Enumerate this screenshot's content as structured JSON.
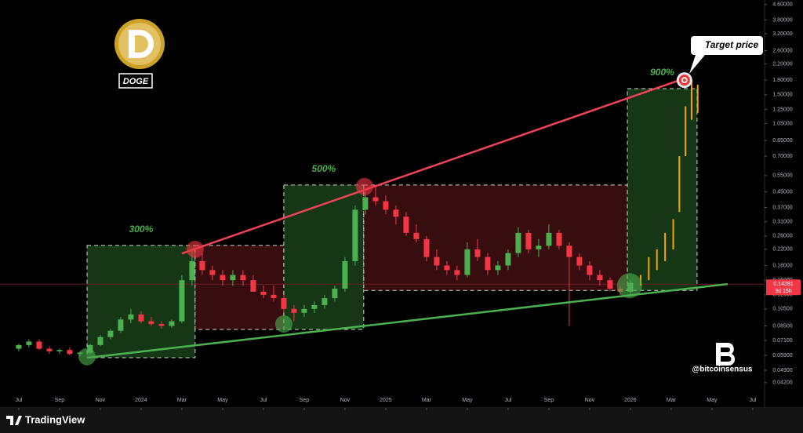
{
  "chart_data": {
    "type": "candlestick",
    "ylog": true,
    "xlim": [
      -0.92,
      36.58
    ],
    "ylim": [
      0.0373,
      4.87
    ],
    "xticks": [
      {
        "value": 0,
        "label": "Jul"
      },
      {
        "value": 2,
        "label": "Sep"
      },
      {
        "value": 4,
        "label": "Nov"
      },
      {
        "value": 6,
        "label": "2024"
      },
      {
        "value": 8,
        "label": "Mar"
      },
      {
        "value": 10,
        "label": "May"
      },
      {
        "value": 12,
        "label": "Jul"
      },
      {
        "value": 14,
        "label": "Sep"
      },
      {
        "value": 16,
        "label": "Nov"
      },
      {
        "value": 18,
        "label": "2025"
      },
      {
        "value": 20,
        "label": "Mar"
      },
      {
        "value": 22,
        "label": "May"
      },
      {
        "value": 24,
        "label": "Jul"
      },
      {
        "value": 26,
        "label": "Sep"
      },
      {
        "value": 28,
        "label": "Nov"
      },
      {
        "value": 30,
        "label": "2026"
      },
      {
        "value": 32,
        "label": "Mar"
      },
      {
        "value": 34,
        "label": "May"
      },
      {
        "value": 36,
        "label": "Jul"
      }
    ],
    "yticks": [
      {
        "value": 4.6,
        "label": "4.60000"
      },
      {
        "value": 3.8,
        "label": "3.80000"
      },
      {
        "value": 3.2,
        "label": "3.20000"
      },
      {
        "value": 2.6,
        "label": "2.60000"
      },
      {
        "value": 2.2,
        "label": "2.20000"
      },
      {
        "value": 1.8,
        "label": "1.80000"
      },
      {
        "value": 1.5,
        "label": "1.50000"
      },
      {
        "value": 1.25,
        "label": "1.25000"
      },
      {
        "value": 1.05,
        "label": "1.05000"
      },
      {
        "value": 0.85,
        "label": "0.85000"
      },
      {
        "value": 0.7,
        "label": "0.70000"
      },
      {
        "value": 0.55,
        "label": "0.55000"
      },
      {
        "value": 0.45,
        "label": "0.45000"
      },
      {
        "value": 0.37,
        "label": "0.37000"
      },
      {
        "value": 0.31,
        "label": "0.31000"
      },
      {
        "value": 0.26,
        "label": "0.26000"
      },
      {
        "value": 0.22,
        "label": "0.22000"
      },
      {
        "value": 0.18,
        "label": "0.18000"
      },
      {
        "value": 0.15,
        "label": "0.15000"
      },
      {
        "value": 0.125,
        "label": "0.12500"
      },
      {
        "value": 0.105,
        "label": "0.10500"
      },
      {
        "value": 0.085,
        "label": "0.08500"
      },
      {
        "value": 0.071,
        "label": "0.07100"
      },
      {
        "value": 0.059,
        "label": "0.05900"
      },
      {
        "value": 0.049,
        "label": "0.04900"
      },
      {
        "value": 0.042,
        "label": "0.04200"
      }
    ],
    "colors": {
      "up": "#4caf50",
      "down": "#f23645",
      "projection": "#f7a600"
    },
    "candles": [
      {
        "x": 0,
        "o": 0.064,
        "h": 0.068,
        "l": 0.062,
        "c": 0.067
      },
      {
        "x": 0.5,
        "o": 0.067,
        "h": 0.072,
        "l": 0.065,
        "c": 0.07
      },
      {
        "x": 1,
        "o": 0.07,
        "h": 0.072,
        "l": 0.063,
        "c": 0.064
      },
      {
        "x": 1.5,
        "o": 0.064,
        "h": 0.066,
        "l": 0.06,
        "c": 0.062
      },
      {
        "x": 2,
        "o": 0.062,
        "h": 0.064,
        "l": 0.06,
        "c": 0.063
      },
      {
        "x": 2.5,
        "o": 0.063,
        "h": 0.065,
        "l": 0.059,
        "c": 0.06
      },
      {
        "x": 3,
        "o": 0.06,
        "h": 0.062,
        "l": 0.058,
        "c": 0.061
      },
      {
        "x": 3.5,
        "o": 0.061,
        "h": 0.068,
        "l": 0.06,
        "c": 0.067
      },
      {
        "x": 4,
        "o": 0.067,
        "h": 0.076,
        "l": 0.066,
        "c": 0.074
      },
      {
        "x": 4.5,
        "o": 0.074,
        "h": 0.082,
        "l": 0.072,
        "c": 0.08
      },
      {
        "x": 5,
        "o": 0.08,
        "h": 0.095,
        "l": 0.078,
        "c": 0.092
      },
      {
        "x": 5.5,
        "o": 0.092,
        "h": 0.105,
        "l": 0.088,
        "c": 0.098
      },
      {
        "x": 6,
        "o": 0.098,
        "h": 0.102,
        "l": 0.088,
        "c": 0.09
      },
      {
        "x": 6.5,
        "o": 0.09,
        "h": 0.095,
        "l": 0.085,
        "c": 0.087
      },
      {
        "x": 7,
        "o": 0.087,
        "h": 0.09,
        "l": 0.082,
        "c": 0.085
      },
      {
        "x": 7.5,
        "o": 0.085,
        "h": 0.092,
        "l": 0.083,
        "c": 0.09
      },
      {
        "x": 8,
        "o": 0.09,
        "h": 0.16,
        "l": 0.088,
        "c": 0.15
      },
      {
        "x": 8.5,
        "o": 0.15,
        "h": 0.22,
        "l": 0.14,
        "c": 0.19
      },
      {
        "x": 9,
        "o": 0.19,
        "h": 0.21,
        "l": 0.16,
        "c": 0.17
      },
      {
        "x": 9.5,
        "o": 0.17,
        "h": 0.18,
        "l": 0.15,
        "c": 0.16
      },
      {
        "x": 10,
        "o": 0.16,
        "h": 0.17,
        "l": 0.14,
        "c": 0.15
      },
      {
        "x": 10.5,
        "o": 0.15,
        "h": 0.17,
        "l": 0.14,
        "c": 0.16
      },
      {
        "x": 11,
        "o": 0.16,
        "h": 0.17,
        "l": 0.14,
        "c": 0.15
      },
      {
        "x": 11.5,
        "o": 0.15,
        "h": 0.16,
        "l": 0.13,
        "c": 0.13
      },
      {
        "x": 12,
        "o": 0.13,
        "h": 0.14,
        "l": 0.12,
        "c": 0.125
      },
      {
        "x": 12.5,
        "o": 0.125,
        "h": 0.14,
        "l": 0.115,
        "c": 0.12
      },
      {
        "x": 13,
        "o": 0.12,
        "h": 0.125,
        "l": 0.1,
        "c": 0.105
      },
      {
        "x": 13.5,
        "o": 0.105,
        "h": 0.11,
        "l": 0.09,
        "c": 0.1
      },
      {
        "x": 14,
        "o": 0.1,
        "h": 0.11,
        "l": 0.095,
        "c": 0.105
      },
      {
        "x": 14.5,
        "o": 0.105,
        "h": 0.115,
        "l": 0.1,
        "c": 0.11
      },
      {
        "x": 15,
        "o": 0.11,
        "h": 0.125,
        "l": 0.105,
        "c": 0.12
      },
      {
        "x": 15.5,
        "o": 0.12,
        "h": 0.14,
        "l": 0.115,
        "c": 0.135
      },
      {
        "x": 16,
        "o": 0.135,
        "h": 0.2,
        "l": 0.13,
        "c": 0.19
      },
      {
        "x": 16.5,
        "o": 0.19,
        "h": 0.38,
        "l": 0.18,
        "c": 0.36
      },
      {
        "x": 17,
        "o": 0.36,
        "h": 0.45,
        "l": 0.34,
        "c": 0.42
      },
      {
        "x": 17.5,
        "o": 0.42,
        "h": 0.48,
        "l": 0.38,
        "c": 0.4
      },
      {
        "x": 18,
        "o": 0.4,
        "h": 0.43,
        "l": 0.34,
        "c": 0.36
      },
      {
        "x": 18.5,
        "o": 0.36,
        "h": 0.38,
        "l": 0.3,
        "c": 0.33
      },
      {
        "x": 19,
        "o": 0.33,
        "h": 0.35,
        "l": 0.26,
        "c": 0.27
      },
      {
        "x": 19.5,
        "o": 0.27,
        "h": 0.3,
        "l": 0.24,
        "c": 0.25
      },
      {
        "x": 20,
        "o": 0.25,
        "h": 0.26,
        "l": 0.19,
        "c": 0.2
      },
      {
        "x": 20.5,
        "o": 0.2,
        "h": 0.22,
        "l": 0.17,
        "c": 0.18
      },
      {
        "x": 21,
        "o": 0.18,
        "h": 0.19,
        "l": 0.16,
        "c": 0.17
      },
      {
        "x": 21.5,
        "o": 0.17,
        "h": 0.18,
        "l": 0.15,
        "c": 0.16
      },
      {
        "x": 22,
        "o": 0.16,
        "h": 0.24,
        "l": 0.155,
        "c": 0.22
      },
      {
        "x": 22.5,
        "o": 0.22,
        "h": 0.25,
        "l": 0.19,
        "c": 0.2
      },
      {
        "x": 23,
        "o": 0.2,
        "h": 0.21,
        "l": 0.16,
        "c": 0.17
      },
      {
        "x": 23.5,
        "o": 0.17,
        "h": 0.19,
        "l": 0.16,
        "c": 0.18
      },
      {
        "x": 24,
        "o": 0.18,
        "h": 0.22,
        "l": 0.17,
        "c": 0.21
      },
      {
        "x": 24.5,
        "o": 0.21,
        "h": 0.29,
        "l": 0.2,
        "c": 0.27
      },
      {
        "x": 25,
        "o": 0.27,
        "h": 0.28,
        "l": 0.21,
        "c": 0.22
      },
      {
        "x": 25.5,
        "o": 0.22,
        "h": 0.25,
        "l": 0.2,
        "c": 0.23
      },
      {
        "x": 26,
        "o": 0.23,
        "h": 0.3,
        "l": 0.22,
        "c": 0.27
      },
      {
        "x": 26.5,
        "o": 0.27,
        "h": 0.28,
        "l": 0.22,
        "c": 0.23
      },
      {
        "x": 27,
        "o": 0.23,
        "h": 0.24,
        "l": 0.085,
        "c": 0.2
      },
      {
        "x": 27.5,
        "o": 0.2,
        "h": 0.21,
        "l": 0.17,
        "c": 0.18
      },
      {
        "x": 28,
        "o": 0.18,
        "h": 0.19,
        "l": 0.15,
        "c": 0.16
      },
      {
        "x": 28.5,
        "o": 0.16,
        "h": 0.17,
        "l": 0.14,
        "c": 0.15
      },
      {
        "x": 29,
        "o": 0.15,
        "h": 0.155,
        "l": 0.13,
        "c": 0.135
      },
      {
        "x": 29.5,
        "o": 0.135,
        "h": 0.14,
        "l": 0.125,
        "c": 0.13
      },
      {
        "x": 30,
        "o": 0.13,
        "h": 0.15,
        "l": 0.125,
        "c": 0.145
      }
    ],
    "projection": [
      {
        "x": 30.5,
        "l": 0.14,
        "h": 0.16
      },
      {
        "x": 30.9,
        "l": 0.15,
        "h": 0.2
      },
      {
        "x": 31.3,
        "l": 0.17,
        "h": 0.22
      },
      {
        "x": 31.7,
        "l": 0.19,
        "h": 0.27
      },
      {
        "x": 32.1,
        "l": 0.22,
        "h": 0.32
      },
      {
        "x": 32.4,
        "l": 0.35,
        "h": 0.7
      },
      {
        "x": 32.7,
        "l": 0.7,
        "h": 1.3
      },
      {
        "x": 33.0,
        "l": 1.1,
        "h": 1.8
      },
      {
        "x": 33.3,
        "l": 1.2,
        "h": 1.7
      }
    ],
    "zones": [
      {
        "x": [
          3.35,
          8.65
        ],
        "y": [
          0.0573,
          0.231
        ],
        "color": "#1e4a1e",
        "label": "300%"
      },
      {
        "x": [
          8.65,
          13.0
        ],
        "y": [
          0.0813,
          0.231
        ],
        "color": "#4a1216"
      },
      {
        "x": [
          13.0,
          16.92
        ],
        "y": [
          0.0813,
          0.489
        ],
        "color": "#1e4a1e",
        "label": "500%"
      },
      {
        "x": [
          16.92,
          29.85
        ],
        "y": [
          0.132,
          0.489
        ],
        "color": "#4a1216"
      },
      {
        "x": [
          29.85,
          33.27
        ],
        "y": [
          0.132,
          1.62
        ],
        "color": "#1e4a1e",
        "label": "900%"
      }
    ],
    "trendlines": [
      {
        "x": [
          8.0,
          32.54
        ],
        "y": [
          0.209,
          1.82
        ],
        "color": "#f0435a"
      },
      {
        "x": [
          3.42,
          34.77
        ],
        "y": [
          0.0573,
          0.143
        ],
        "color": "#4caf50"
      }
    ],
    "markers": [
      {
        "x": 8.65,
        "y": 0.22,
        "color": "#f23645"
      },
      {
        "x": 16.96,
        "y": 0.48,
        "color": "#f23645"
      },
      {
        "x": 3.35,
        "y": 0.058,
        "color": "#4caf50"
      },
      {
        "x": 13.0,
        "y": 0.087,
        "color": "#4caf50"
      },
      {
        "x": 29.96,
        "y": 0.14,
        "color": "#4caf50"
      }
    ],
    "target": {
      "x": 32.65,
      "y": 1.8,
      "label": "Target price"
    },
    "current_price": {
      "value": 0.14281,
      "countdown": "3d 15h"
    },
    "badge": "DOGE",
    "watermark": "@bitcoinsensus"
  },
  "footer": {
    "brand": "TradingView"
  }
}
